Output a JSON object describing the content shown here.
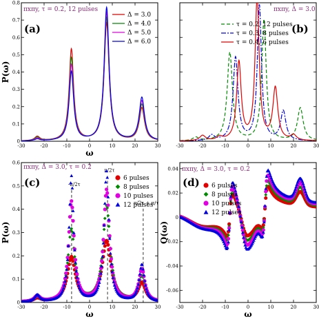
{
  "colors": {
    "red": "#e00000",
    "green": "#008a00",
    "magenta": "#e000e0",
    "blue": "#0000e0",
    "title": "#8a2a7a"
  },
  "chart_data": [
    {
      "id": "a",
      "type": "line",
      "panel_label": "(a)",
      "title": "πxπy, τ = 0.2, 12 pulses",
      "xlabel": "ω",
      "ylabel": "P(ω)",
      "xlim": [
        -30,
        30
      ],
      "ylim": [
        0,
        0.8
      ],
      "xticks": [
        -30,
        -20,
        -10,
        0,
        10,
        20,
        30
      ],
      "yticks": [
        0,
        0.1,
        0.2,
        0.3,
        0.4,
        0.5,
        0.6,
        0.7,
        0.8
      ],
      "grid": false,
      "legend": "top-right",
      "series": [
        {
          "name": "Δ = 3.0",
          "color": "#e00000",
          "style": "solid",
          "marker": "none",
          "peaks": [
            [
              -23,
              0.025,
              1.4
            ],
            [
              -8,
              0.53,
              1.2
            ],
            [
              7.5,
              0.68,
              1.3
            ],
            [
              23,
              0.19,
              1.4
            ]
          ]
        },
        {
          "name": "Δ = 4.0",
          "color": "#008a00",
          "style": "solid",
          "marker": "none",
          "peaks": [
            [
              -23,
              0.02,
              1.4
            ],
            [
              -8,
              0.48,
              1.2
            ],
            [
              7.5,
              0.71,
              1.3
            ],
            [
              23,
              0.21,
              1.4
            ]
          ]
        },
        {
          "name": "Δ = 5.0",
          "color": "#e000e0",
          "style": "solid",
          "marker": "none",
          "peaks": [
            [
              -23,
              0.015,
              1.4
            ],
            [
              -8,
              0.44,
              1.2
            ],
            [
              7.5,
              0.74,
              1.3
            ],
            [
              23,
              0.23,
              1.4
            ]
          ]
        },
        {
          "name": "Δ = 6.0",
          "color": "#0000e0",
          "style": "solid",
          "marker": "none",
          "peaks": [
            [
              -23,
              0.01,
              1.4
            ],
            [
              -8,
              0.4,
              1.2
            ],
            [
              7.5,
              0.77,
              1.3
            ],
            [
              23,
              0.25,
              1.4
            ]
          ]
        }
      ]
    },
    {
      "id": "b",
      "type": "line",
      "panel_label": "(b)",
      "title": "πxπy, Δ = 3.0",
      "xlabel": "",
      "ylabel": "",
      "xlim": [
        -30,
        30
      ],
      "ylim": [
        0,
        0.8
      ],
      "xticks": [
        -30,
        -20,
        -10,
        0,
        10,
        20,
        30
      ],
      "yticks": [],
      "grid": false,
      "legend": "top-right",
      "series": [
        {
          "name": "τ = 0.2, 12 pulses",
          "color": "#008a00",
          "style": "dashed",
          "marker": "none",
          "peaks": [
            [
              -23,
              0.02,
              1.5
            ],
            [
              -8,
              0.51,
              1.4
            ],
            [
              7,
              0.7,
              1.2
            ],
            [
              23,
              0.19,
              1.5
            ]
          ]
        },
        {
          "name": "τ = 0.3, 8 pulses",
          "color": "#0000e0",
          "style": "dashdot",
          "marker": "none",
          "peaks": [
            [
              -16,
              0.03,
              1.5
            ],
            [
              -5.5,
              0.48,
              1.3
            ],
            [
              5,
              0.78,
              1.1
            ],
            [
              15.5,
              0.17,
              1.4
            ]
          ]
        },
        {
          "name": "τ = 0.4, 6 pulses",
          "color": "#e00000",
          "style": "solid",
          "marker": "none",
          "peaks": [
            [
              -20,
              0.03,
              1.5
            ],
            [
              -12.5,
              0.02,
              1.5
            ],
            [
              -4,
              0.45,
              1.2
            ],
            [
              4,
              0.82,
              1.1
            ],
            [
              12,
              0.3,
              1.3
            ],
            [
              20,
              0.03,
              1.5
            ]
          ]
        }
      ]
    },
    {
      "id": "c",
      "type": "scatter",
      "panel_label": "(c)",
      "title": "πxπy, Δ = 3.0, τ = 0.2",
      "xlabel": "ω",
      "ylabel": "P(ω)",
      "xlim": [
        -30,
        30
      ],
      "ylim": [
        0,
        0.6
      ],
      "xticks": [
        -30,
        -20,
        -10,
        0,
        10,
        20,
        30
      ],
      "yticks": [
        0,
        0.1,
        0.2,
        0.3,
        0.4,
        0.5,
        0.6
      ],
      "grid": false,
      "legend": "top-right",
      "annotations": [
        {
          "text": "-π/2τ",
          "x": -7.9,
          "line": true,
          "label_y": 0.5
        },
        {
          "text": "π/2τ",
          "x": 7.9,
          "line": true,
          "label_y": 0.56
        },
        {
          "text": "π/2τ + π/τ",
          "x": 23.6,
          "line": true,
          "label_y": 0.42
        }
      ],
      "series": [
        {
          "name": "6 pulses",
          "color": "#e00000",
          "marker": "circle",
          "peaks": [
            [
              -23,
              0.015,
              2.0
            ],
            [
              -8,
              0.19,
              2.2
            ],
            [
              7.5,
              0.26,
              2.4
            ],
            [
              23,
              0.08,
              2.0
            ]
          ]
        },
        {
          "name": "8 pulses",
          "color": "#008a00",
          "marker": "diamond",
          "peaks": [
            [
              -23,
              0.02,
              1.8
            ],
            [
              -8,
              0.31,
              1.8
            ],
            [
              7.5,
              0.41,
              1.9
            ],
            [
              23,
              0.11,
              1.8
            ]
          ]
        },
        {
          "name": "10 pulses",
          "color": "#e000e0",
          "marker": "circle",
          "peaks": [
            [
              -23,
              0.025,
              1.6
            ],
            [
              -8,
              0.43,
              1.5
            ],
            [
              7.5,
              0.48,
              1.6
            ],
            [
              23,
              0.14,
              1.6
            ]
          ]
        },
        {
          "name": "12 pulses",
          "color": "#0000e0",
          "marker": "triangle",
          "peaks": [
            [
              -23,
              0.03,
              1.4
            ],
            [
              -8,
              0.54,
              1.2
            ],
            [
              7.5,
              0.56,
              1.3
            ],
            [
              23,
              0.16,
              1.4
            ]
          ]
        }
      ]
    },
    {
      "id": "d",
      "type": "scatter",
      "panel_label": "(d)",
      "title": "πxπy, Δ = 3.0, τ = 0.2",
      "xlabel": "ω",
      "ylabel": "Q(ω)",
      "xlim": [
        -30,
        30
      ],
      "ylim": [
        -0.07,
        0.045
      ],
      "xticks": [
        -30,
        -20,
        -10,
        0,
        10,
        20,
        30
      ],
      "yticks": [
        -0.06,
        -0.04,
        -0.02,
        0,
        0.02,
        0.04
      ],
      "grid": false,
      "legend": "top-left",
      "series": [
        {
          "name": "6 pulses",
          "color": "#e00000",
          "marker": "circle",
          "gain": 0.62
        },
        {
          "name": "8 pulses",
          "color": "#008a00",
          "marker": "diamond",
          "gain": 0.75
        },
        {
          "name": "10 pulses",
          "color": "#e000e0",
          "marker": "circle",
          "gain": 0.88
        },
        {
          "name": "12 pulses",
          "color": "#0000e0",
          "marker": "triangle",
          "gain": 1.0
        }
      ]
    }
  ]
}
